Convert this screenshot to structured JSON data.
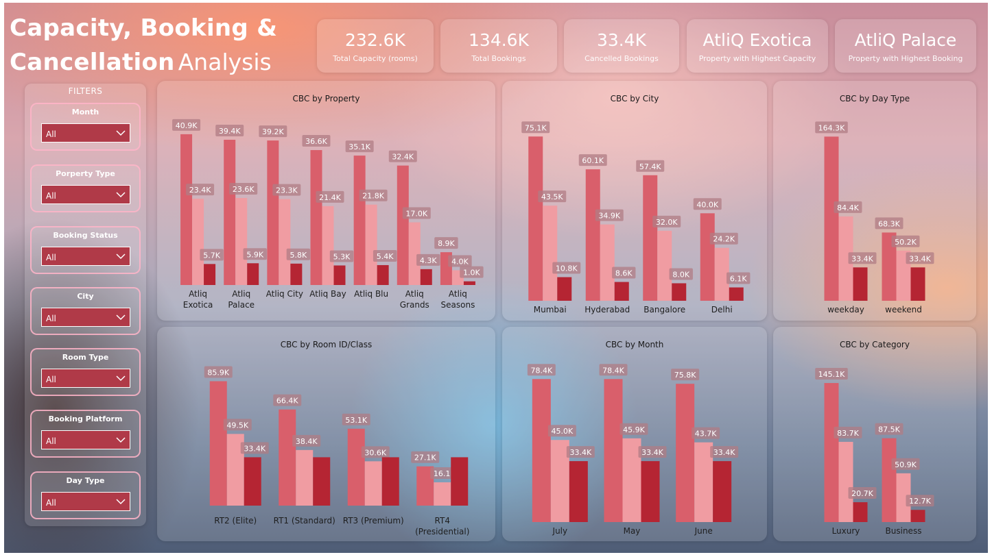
{
  "title": {
    "line1": "Capacity, Booking &",
    "line2_bold": "Cancellation",
    "line2_light": "Analysis"
  },
  "kpis": [
    {
      "value": "232.6K",
      "label": "Total Capacity (rooms)"
    },
    {
      "value": "134.6K",
      "label": "Total Bookings"
    },
    {
      "value": "33.4K",
      "label": "Cancelled Bookings"
    },
    {
      "value": "AtliQ Exotica",
      "label": "Property with Highest Capacity"
    },
    {
      "value": "AtliQ Palace",
      "label": "Property with Highest Booking"
    }
  ],
  "filters": {
    "title": "FILTERS",
    "slicers": [
      {
        "label": "Month",
        "value": "All"
      },
      {
        "label": "Porperty Type",
        "value": "All"
      },
      {
        "label": "Booking Status",
        "value": "All"
      },
      {
        "label": "City",
        "value": "All"
      },
      {
        "label": "Room Type",
        "value": "All"
      },
      {
        "label": "Booking Platform",
        "value": "All"
      },
      {
        "label": "Day Type",
        "value": "All"
      }
    ]
  },
  "colors": {
    "capacity": "#d95f6b",
    "bookings": "#f09ca2",
    "cancelled": "#b52533",
    "label_bg": "#b07c84",
    "axis_text": "#1e1e1e"
  },
  "chart_data": [
    {
      "id": "property",
      "type": "bar",
      "title": "CBC by Property",
      "categories": [
        [
          "Atliq",
          "Exotica"
        ],
        [
          "Atliq",
          "Palace"
        ],
        [
          "Atliq City"
        ],
        [
          "Atliq Bay"
        ],
        [
          "Atliq Blu"
        ],
        [
          "Atliq",
          "Grands"
        ],
        [
          "Atliq",
          "Seasons"
        ]
      ],
      "series": [
        {
          "values": [
            40.9,
            39.4,
            39.2,
            36.6,
            35.1,
            32.4,
            8.9
          ],
          "labels": [
            "40.9K",
            "39.4K",
            "39.2K",
            "36.6K",
            "35.1K",
            "32.4K",
            "8.9K"
          ]
        },
        {
          "values": [
            23.4,
            23.6,
            23.3,
            21.4,
            21.8,
            17.0,
            4.0
          ],
          "labels": [
            "23.4K",
            "23.6K",
            "23.3K",
            "21.4K",
            "21.8K",
            "17.0K",
            "4.0K"
          ]
        },
        {
          "values": [
            5.7,
            5.9,
            5.8,
            5.3,
            5.4,
            4.3,
            1.0
          ],
          "labels": [
            "5.7K",
            "5.9K",
            "5.8K",
            "5.3K",
            "5.4K",
            "4.3K",
            "1.0K"
          ]
        }
      ]
    },
    {
      "id": "city",
      "type": "bar",
      "title": "CBC by City",
      "categories": [
        [
          "Mumbai"
        ],
        [
          "Hyderabad"
        ],
        [
          "Bangalore"
        ],
        [
          "Delhi"
        ]
      ],
      "series": [
        {
          "values": [
            75.1,
            60.1,
            57.4,
            40.0
          ],
          "labels": [
            "75.1K",
            "60.1K",
            "57.4K",
            "40.0K"
          ]
        },
        {
          "values": [
            43.5,
            34.9,
            32.0,
            24.2
          ],
          "labels": [
            "43.5K",
            "34.9K",
            "32.0K",
            "24.2K"
          ]
        },
        {
          "values": [
            10.8,
            8.6,
            8.0,
            6.1
          ],
          "labels": [
            "10.8K",
            "8.6K",
            "8.0K",
            "6.1K"
          ]
        }
      ]
    },
    {
      "id": "daytype",
      "type": "bar",
      "title": "CBC by Day Type",
      "categories": [
        [
          "weekday"
        ],
        [
          "weekend"
        ]
      ],
      "series": [
        {
          "values": [
            164.3,
            68.3
          ],
          "labels": [
            "164.3K",
            "68.3K"
          ]
        },
        {
          "values": [
            84.4,
            50.2
          ],
          "labels": [
            "84.4K",
            "50.2K"
          ]
        },
        {
          "values": [
            33.4,
            33.4
          ],
          "labels": [
            "33.4K",
            "33.4K"
          ]
        }
      ]
    },
    {
      "id": "room",
      "type": "bar",
      "title": "CBC by Room ID/Class",
      "categories": [
        [
          "RT2 (Elite)"
        ],
        [
          "RT1 (Standard)"
        ],
        [
          "RT3 (Premium)"
        ],
        [
          "RT4",
          "(Presidential)"
        ]
      ],
      "series": [
        {
          "values": [
            85.9,
            66.4,
            53.1,
            27.1
          ],
          "labels": [
            "85.9K",
            "66.4K",
            "53.1K",
            "27.1K"
          ]
        },
        {
          "values": [
            49.5,
            38.4,
            30.6,
            16.1
          ],
          "labels": [
            "49.5K",
            "38.4K",
            "30.6K",
            "16.1K"
          ]
        },
        {
          "values": [
            33.4,
            33.4,
            33.4,
            33.4
          ],
          "labels": [
            "33.4K",
            "",
            "",
            ""
          ]
        }
      ]
    },
    {
      "id": "month",
      "type": "bar",
      "title": "CBC by Month",
      "categories": [
        [
          "July"
        ],
        [
          "May"
        ],
        [
          "June"
        ]
      ],
      "series": [
        {
          "values": [
            78.4,
            78.4,
            75.8
          ],
          "labels": [
            "78.4K",
            "78.4K",
            "75.8K"
          ]
        },
        {
          "values": [
            45.0,
            45.9,
            43.7
          ],
          "labels": [
            "45.0K",
            "45.9K",
            "43.7K"
          ]
        },
        {
          "values": [
            33.4,
            33.4,
            33.4
          ],
          "labels": [
            "33.4K",
            "33.4K",
            "33.4K"
          ]
        }
      ]
    },
    {
      "id": "category",
      "type": "bar",
      "title": "CBC by Category",
      "categories": [
        [
          "Luxury"
        ],
        [
          "Business"
        ]
      ],
      "series": [
        {
          "values": [
            145.1,
            87.5
          ],
          "labels": [
            "145.1K",
            "87.5K"
          ]
        },
        {
          "values": [
            83.7,
            50.9
          ],
          "labels": [
            "83.7K",
            "50.9K"
          ]
        },
        {
          "values": [
            20.7,
            12.7
          ],
          "labels": [
            "20.7K",
            "12.7K"
          ]
        }
      ]
    }
  ]
}
